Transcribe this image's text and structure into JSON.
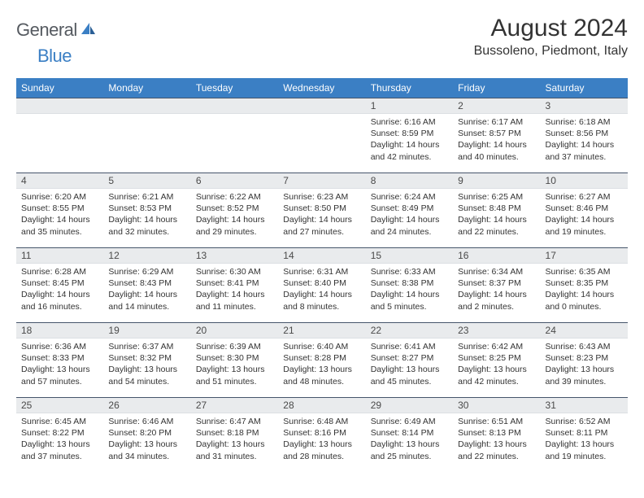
{
  "logo": {
    "text1": "General",
    "text2": "Blue"
  },
  "title": "August 2024",
  "location": "Bussoleno, Piedmont, Italy",
  "header_bg": "#3b7fc4",
  "dayheaders": [
    "Sunday",
    "Monday",
    "Tuesday",
    "Wednesday",
    "Thursday",
    "Friday",
    "Saturday"
  ],
  "weeks": [
    [
      {
        "n": "",
        "sr": "",
        "ss": "",
        "dl": ""
      },
      {
        "n": "",
        "sr": "",
        "ss": "",
        "dl": ""
      },
      {
        "n": "",
        "sr": "",
        "ss": "",
        "dl": ""
      },
      {
        "n": "",
        "sr": "",
        "ss": "",
        "dl": ""
      },
      {
        "n": "1",
        "sr": "Sunrise: 6:16 AM",
        "ss": "Sunset: 8:59 PM",
        "dl": "Daylight: 14 hours and 42 minutes."
      },
      {
        "n": "2",
        "sr": "Sunrise: 6:17 AM",
        "ss": "Sunset: 8:57 PM",
        "dl": "Daylight: 14 hours and 40 minutes."
      },
      {
        "n": "3",
        "sr": "Sunrise: 6:18 AM",
        "ss": "Sunset: 8:56 PM",
        "dl": "Daylight: 14 hours and 37 minutes."
      }
    ],
    [
      {
        "n": "4",
        "sr": "Sunrise: 6:20 AM",
        "ss": "Sunset: 8:55 PM",
        "dl": "Daylight: 14 hours and 35 minutes."
      },
      {
        "n": "5",
        "sr": "Sunrise: 6:21 AM",
        "ss": "Sunset: 8:53 PM",
        "dl": "Daylight: 14 hours and 32 minutes."
      },
      {
        "n": "6",
        "sr": "Sunrise: 6:22 AM",
        "ss": "Sunset: 8:52 PM",
        "dl": "Daylight: 14 hours and 29 minutes."
      },
      {
        "n": "7",
        "sr": "Sunrise: 6:23 AM",
        "ss": "Sunset: 8:50 PM",
        "dl": "Daylight: 14 hours and 27 minutes."
      },
      {
        "n": "8",
        "sr": "Sunrise: 6:24 AM",
        "ss": "Sunset: 8:49 PM",
        "dl": "Daylight: 14 hours and 24 minutes."
      },
      {
        "n": "9",
        "sr": "Sunrise: 6:25 AM",
        "ss": "Sunset: 8:48 PM",
        "dl": "Daylight: 14 hours and 22 minutes."
      },
      {
        "n": "10",
        "sr": "Sunrise: 6:27 AM",
        "ss": "Sunset: 8:46 PM",
        "dl": "Daylight: 14 hours and 19 minutes."
      }
    ],
    [
      {
        "n": "11",
        "sr": "Sunrise: 6:28 AM",
        "ss": "Sunset: 8:45 PM",
        "dl": "Daylight: 14 hours and 16 minutes."
      },
      {
        "n": "12",
        "sr": "Sunrise: 6:29 AM",
        "ss": "Sunset: 8:43 PM",
        "dl": "Daylight: 14 hours and 14 minutes."
      },
      {
        "n": "13",
        "sr": "Sunrise: 6:30 AM",
        "ss": "Sunset: 8:41 PM",
        "dl": "Daylight: 14 hours and 11 minutes."
      },
      {
        "n": "14",
        "sr": "Sunrise: 6:31 AM",
        "ss": "Sunset: 8:40 PM",
        "dl": "Daylight: 14 hours and 8 minutes."
      },
      {
        "n": "15",
        "sr": "Sunrise: 6:33 AM",
        "ss": "Sunset: 8:38 PM",
        "dl": "Daylight: 14 hours and 5 minutes."
      },
      {
        "n": "16",
        "sr": "Sunrise: 6:34 AM",
        "ss": "Sunset: 8:37 PM",
        "dl": "Daylight: 14 hours and 2 minutes."
      },
      {
        "n": "17",
        "sr": "Sunrise: 6:35 AM",
        "ss": "Sunset: 8:35 PM",
        "dl": "Daylight: 14 hours and 0 minutes."
      }
    ],
    [
      {
        "n": "18",
        "sr": "Sunrise: 6:36 AM",
        "ss": "Sunset: 8:33 PM",
        "dl": "Daylight: 13 hours and 57 minutes."
      },
      {
        "n": "19",
        "sr": "Sunrise: 6:37 AM",
        "ss": "Sunset: 8:32 PM",
        "dl": "Daylight: 13 hours and 54 minutes."
      },
      {
        "n": "20",
        "sr": "Sunrise: 6:39 AM",
        "ss": "Sunset: 8:30 PM",
        "dl": "Daylight: 13 hours and 51 minutes."
      },
      {
        "n": "21",
        "sr": "Sunrise: 6:40 AM",
        "ss": "Sunset: 8:28 PM",
        "dl": "Daylight: 13 hours and 48 minutes."
      },
      {
        "n": "22",
        "sr": "Sunrise: 6:41 AM",
        "ss": "Sunset: 8:27 PM",
        "dl": "Daylight: 13 hours and 45 minutes."
      },
      {
        "n": "23",
        "sr": "Sunrise: 6:42 AM",
        "ss": "Sunset: 8:25 PM",
        "dl": "Daylight: 13 hours and 42 minutes."
      },
      {
        "n": "24",
        "sr": "Sunrise: 6:43 AM",
        "ss": "Sunset: 8:23 PM",
        "dl": "Daylight: 13 hours and 39 minutes."
      }
    ],
    [
      {
        "n": "25",
        "sr": "Sunrise: 6:45 AM",
        "ss": "Sunset: 8:22 PM",
        "dl": "Daylight: 13 hours and 37 minutes."
      },
      {
        "n": "26",
        "sr": "Sunrise: 6:46 AM",
        "ss": "Sunset: 8:20 PM",
        "dl": "Daylight: 13 hours and 34 minutes."
      },
      {
        "n": "27",
        "sr": "Sunrise: 6:47 AM",
        "ss": "Sunset: 8:18 PM",
        "dl": "Daylight: 13 hours and 31 minutes."
      },
      {
        "n": "28",
        "sr": "Sunrise: 6:48 AM",
        "ss": "Sunset: 8:16 PM",
        "dl": "Daylight: 13 hours and 28 minutes."
      },
      {
        "n": "29",
        "sr": "Sunrise: 6:49 AM",
        "ss": "Sunset: 8:14 PM",
        "dl": "Daylight: 13 hours and 25 minutes."
      },
      {
        "n": "30",
        "sr": "Sunrise: 6:51 AM",
        "ss": "Sunset: 8:13 PM",
        "dl": "Daylight: 13 hours and 22 minutes."
      },
      {
        "n": "31",
        "sr": "Sunrise: 6:52 AM",
        "ss": "Sunset: 8:11 PM",
        "dl": "Daylight: 13 hours and 19 minutes."
      }
    ]
  ]
}
